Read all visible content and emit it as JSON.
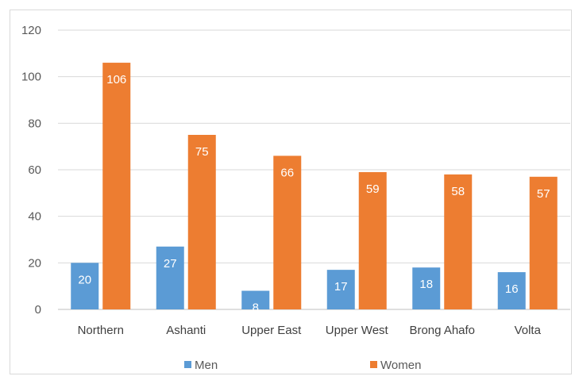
{
  "chart_data": {
    "type": "bar",
    "categories": [
      "Northern",
      "Ashanti",
      "Upper East",
      "Upper West",
      "Brong Ahafo",
      "Volta"
    ],
    "series": [
      {
        "name": "Men",
        "values": [
          20,
          27,
          8,
          17,
          18,
          16
        ],
        "color": "#5b9bd5"
      },
      {
        "name": "Women",
        "values": [
          106,
          75,
          66,
          59,
          58,
          57
        ],
        "color": "#ed7d31"
      }
    ],
    "title": "",
    "xlabel": "",
    "ylabel": "",
    "ylim": [
      0,
      120
    ],
    "yticks": [
      0,
      20,
      40,
      60,
      80,
      100,
      120
    ],
    "grid": true,
    "data_labels": true,
    "legend_position": "bottom"
  }
}
